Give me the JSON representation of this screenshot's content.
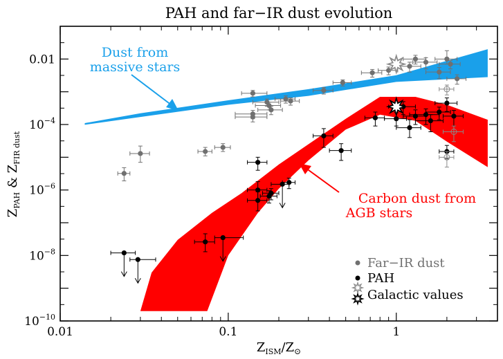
{
  "chart_data": {
    "type": "scatter",
    "title": "PAH and far−IR dust evolution",
    "xlabel": {
      "base": "Z",
      "sub": "ISM",
      "sep": "/Z",
      "sun": "⊙"
    },
    "ylabel": {
      "p1": "Z",
      "s1": "PAH",
      "amp": " & Z",
      "s2": "FIR dust"
    },
    "x_scale": "log",
    "y_scale": "log",
    "xlim": [
      0.01,
      4.0
    ],
    "ylim": [
      1e-10,
      0.1
    ],
    "x_ticks": [
      {
        "value": 0.01,
        "label": "0.01"
      },
      {
        "value": 0.1,
        "label": "0.1"
      },
      {
        "value": 1,
        "label": "1"
      }
    ],
    "y_ticks": [
      {
        "value": 1e-10,
        "base": "10",
        "exp": "−10"
      },
      {
        "value": 1e-08,
        "base": "10",
        "exp": "−8"
      },
      {
        "value": 1e-06,
        "base": "10",
        "exp": "−6"
      },
      {
        "value": 0.0001,
        "base": "10",
        "exp": "−4"
      },
      {
        "value": 0.01,
        "label": "0.01"
      }
    ],
    "bands": [
      {
        "name": "Dust from massive stars",
        "color": "#1aa0ea",
        "label_lines": [
          "Dust from",
          "massive stars"
        ],
        "upper": [
          [
            0.014,
            0.00011
          ],
          [
            0.03,
            0.00022
          ],
          [
            0.1,
            0.00055
          ],
          [
            0.3,
            0.0012
          ],
          [
            1.0,
            0.0032
          ],
          [
            3.5,
            0.02
          ]
        ],
        "lower": [
          [
            3.5,
            0.0028
          ],
          [
            1.0,
            0.002
          ],
          [
            0.3,
            0.00075
          ],
          [
            0.1,
            0.0004
          ],
          [
            0.03,
            0.00017
          ],
          [
            0.014,
            9.8e-05
          ]
        ]
      },
      {
        "name": "Carbon dust from AGB stars",
        "color": "#ff0000",
        "label_lines": [
          "Carbon dust from",
          "AGB stars"
        ],
        "upper": [
          [
            0.035,
            3e-09
          ],
          [
            0.05,
            3e-08
          ],
          [
            0.08,
            2e-07
          ],
          [
            0.12,
            8e-07
          ],
          [
            0.2,
            6e-06
          ],
          [
            0.3,
            2.5e-05
          ],
          [
            0.5,
            0.00015
          ],
          [
            0.8,
            0.0007
          ],
          [
            1.3,
            0.0007
          ],
          [
            2.0,
            0.0004
          ],
          [
            3.5,
            0.00014
          ]
        ],
        "lower": [
          [
            3.5,
            5e-06
          ],
          [
            2.0,
            3e-05
          ],
          [
            1.3,
            0.00013
          ],
          [
            0.8,
            0.0002
          ],
          [
            0.5,
            7e-05
          ],
          [
            0.3,
            8e-06
          ],
          [
            0.2,
            1.1e-06
          ],
          [
            0.15,
            2e-07
          ],
          [
            0.1,
            1e-08
          ],
          [
            0.075,
            2e-10
          ],
          [
            0.03,
            2e-10
          ]
        ]
      }
    ],
    "series": [
      {
        "name": "Far−IR dust",
        "color": "#707070",
        "points": [
          {
            "x": 0.024,
            "y": 3.2e-06,
            "xerr": [
              0.002,
              0.002
            ],
            "yerr": [
              1.3e-06,
              1.6e-06
            ]
          },
          {
            "x": 0.03,
            "y": 1.3e-05,
            "xerr": [
              0.004,
              0.004
            ],
            "yerr": [
              6e-06,
              9e-06
            ]
          },
          {
            "x": 0.073,
            "y": 1.5e-05,
            "xerr": [
              0.007,
              0.007
            ],
            "yerr": [
              4e-06,
              5e-06
            ]
          },
          {
            "x": 0.093,
            "y": 2e-05,
            "xerr": [
              0.01,
              0.01
            ],
            "yerr": [
              5e-06,
              6e-06
            ]
          },
          {
            "x": 0.14,
            "y": 0.0009,
            "xerr": [
              0.02,
              0.03
            ],
            "yerr": [
              0.0002,
              0.0002
            ]
          },
          {
            "x": 0.14,
            "y": 0.00021,
            "xerr": [
              0.03,
              0.03
            ],
            "yerr": [
              6e-05,
              6e-05
            ]
          },
          {
            "x": 0.14,
            "y": 0.00017,
            "xerr": [
              0.03,
              0.03
            ],
            "yerr": [
              5e-05,
              5e-05
            ]
          },
          {
            "x": 0.17,
            "y": 0.00048,
            "xerr": [
              0.03,
              0.03
            ],
            "yerr": [
              0.00012,
              0.00012
            ]
          },
          {
            "x": 0.175,
            "y": 0.00038,
            "xerr": [
              0.03,
              0.03
            ],
            "yerr": [
              0.0001,
              0.0001
            ]
          },
          {
            "x": 0.18,
            "y": 0.00028,
            "xerr": [
              0.03,
              0.03
            ],
            "yerr": [
              8e-05,
              8e-05
            ]
          },
          {
            "x": 0.22,
            "y": 0.0006,
            "xerr": [
              0.03,
              0.03
            ],
            "yerr": [
              0.00015,
              0.00015
            ]
          },
          {
            "x": 0.235,
            "y": 0.00052,
            "xerr": [
              0.03,
              0.03
            ],
            "yerr": [
              0.00013,
              0.00013
            ]
          },
          {
            "x": 0.37,
            "y": 0.0011,
            "xerr": [
              0.05,
              0.05
            ],
            "yerr": [
              0.00025,
              0.00025
            ]
          },
          {
            "x": 0.48,
            "y": 0.0019,
            "xerr": [
              0.06,
              0.06
            ],
            "yerr": [
              0.0004,
              0.0004
            ]
          },
          {
            "x": 0.72,
            "y": 0.0038,
            "xerr": [
              0.1,
              0.1
            ],
            "yerr": [
              0.001,
              0.001
            ]
          },
          {
            "x": 0.9,
            "y": 0.0045,
            "xerr": [
              0.12,
              0.12
            ],
            "yerr": [
              0.0012,
              0.0012
            ]
          },
          {
            "x": 1.2,
            "y": 0.006,
            "xerr": [
              0.2,
              0.2
            ],
            "yerr": [
              0.002,
              0.002
            ]
          },
          {
            "x": 1.3,
            "y": 0.01,
            "xerr": [
              0.2,
              0.2
            ],
            "yerr": [
              0.003,
              0.003
            ]
          },
          {
            "x": 1.5,
            "y": 0.008,
            "xerr": [
              0.25,
              0.25
            ],
            "yerr": [
              0.003,
              0.003
            ]
          },
          {
            "x": 1.8,
            "y": 0.004,
            "xerr": [
              0.3,
              0.3
            ],
            "yerr": [
              0.0015,
              0.0015
            ]
          },
          {
            "x": 2.0,
            "y": 0.01,
            "xerr": [
              0.3,
              0.3
            ],
            "yerr": [
              0.003,
              0.008
            ]
          },
          {
            "x": 2.1,
            "y": 0.007,
            "xerr": [
              0.3,
              0.3
            ],
            "yerr": [
              0.002,
              0.002
            ]
          },
          {
            "x": 2.3,
            "y": 0.0025,
            "xerr": [
              0.3,
              0.3
            ],
            "yerr": [
              0.0008,
              0.0008
            ]
          }
        ]
      },
      {
        "name": "PAH",
        "color": "#000000",
        "points": [
          {
            "x": 0.024,
            "y": 1.2e-08,
            "xerr": [
              0.004,
              0.004
            ],
            "upper_limit": true
          },
          {
            "x": 0.029,
            "y": 7.5e-09,
            "xerr": [
              0.003,
              0.008
            ],
            "upper_limit": true
          },
          {
            "x": 0.073,
            "y": 2.6e-08,
            "xerr": [
              0.01,
              0.01
            ],
            "yerr": [
              1.3e-08,
              2e-08
            ]
          },
          {
            "x": 0.093,
            "y": 3.5e-08,
            "xerr": [
              0.01,
              0.03
            ],
            "upper_limit": true
          },
          {
            "x": 0.15,
            "y": 7e-06,
            "xerr": [
              0.02,
              0.02
            ],
            "yerr": [
              3e-06,
              3e-06
            ]
          },
          {
            "x": 0.15,
            "y": 1e-06,
            "xerr": [
              0.02,
              0.02
            ],
            "yerr": [
              5e-07,
              8e-07
            ]
          },
          {
            "x": 0.15,
            "y": 4.8e-07,
            "xerr": [
              0.02,
              0.02
            ],
            "yerr": [
              2.5e-07,
              4e-07
            ]
          },
          {
            "x": 0.175,
            "y": 6.5e-07,
            "xerr": [
              0.02,
              0.02
            ],
            "yerr": [
              2.5e-07,
              3e-07
            ]
          },
          {
            "x": 0.18,
            "y": 8e-07,
            "xerr": [
              0.02,
              0.02
            ],
            "yerr": [
              3e-07,
              3e-07
            ]
          },
          {
            "x": 0.21,
            "y": 1.5e-06,
            "xerr": [
              0.03,
              0.02
            ],
            "upper_limit": true
          },
          {
            "x": 0.23,
            "y": 1.7e-06,
            "xerr": [
              0.02,
              0.02
            ],
            "yerr": [
              6e-07,
              6e-07
            ]
          },
          {
            "x": 0.37,
            "y": 4.5e-05,
            "xerr": [
              0.05,
              0.05
            ],
            "yerr": [
              2.5e-05,
              3e-05
            ]
          },
          {
            "x": 0.47,
            "y": 1.6e-05,
            "xerr": [
              0.07,
              0.07
            ],
            "yerr": [
              8e-06,
              1e-05
            ]
          },
          {
            "x": 0.75,
            "y": 0.00016,
            "xerr": [
              0.1,
              0.1
            ],
            "yerr": [
              7e-05,
              8e-05
            ]
          },
          {
            "x": 1.0,
            "y": 0.00015,
            "xerr": [
              0.15,
              0.15
            ],
            "yerr": [
              6e-05,
              8e-05
            ]
          },
          {
            "x": 1.1,
            "y": 0.00035,
            "xerr": [
              0.2,
              0.2
            ],
            "yerr": [
              0.00015,
              0.00015
            ]
          },
          {
            "x": 1.2,
            "y": 8e-05,
            "xerr": [
              0.2,
              0.2
            ],
            "yerr": [
              4e-05,
              6e-05
            ]
          },
          {
            "x": 1.3,
            "y": 0.00018,
            "xerr": [
              0.2,
              0.2
            ],
            "yerr": [
              8e-05,
              0.0001
            ]
          },
          {
            "x": 1.5,
            "y": 0.0002,
            "xerr": [
              0.3,
              0.3
            ],
            "yerr": [
              0.0001,
              0.0001
            ]
          },
          {
            "x": 1.6,
            "y": 0.00013,
            "xerr": [
              0.3,
              0.3
            ],
            "yerr": [
              7e-05,
              7e-05
            ]
          },
          {
            "x": 1.8,
            "y": 0.00024,
            "xerr": [
              0.3,
              0.3
            ],
            "yerr": [
              0.0001,
              0.0001
            ]
          },
          {
            "x": 2.0,
            "y": 0.00045,
            "xerr": [
              0.3,
              0.3
            ],
            "yerr": [
              0.0002,
              0.0002
            ]
          },
          {
            "x": 2.0,
            "y": 1.5e-05,
            "xerr": [
              0.2,
              0.2
            ],
            "yerr": [
              6e-06,
              8e-06
            ]
          },
          {
            "x": 2.2,
            "y": 0.00018,
            "xerr": [
              0.3,
              0.3
            ],
            "yerr": [
              9e-05,
              9e-05
            ]
          }
        ]
      },
      {
        "name": "Far−IR dust (open)",
        "color": "#8a8a8a",
        "open": true,
        "points": [
          {
            "x": 2.0,
            "y": 0.0012,
            "xerr": [
              0.2,
              0.2
            ],
            "yerr": [
              0.0004,
              0.0004
            ]
          },
          {
            "x": 2.0,
            "y": 1e-05,
            "xerr": [
              0.2,
              0.2
            ],
            "yerr": [
              5e-06,
              5e-06
            ]
          },
          {
            "x": 2.2,
            "y": 6e-05,
            "xerr": [
              0.3,
              0.3
            ],
            "yerr": [
              3e-05,
              3e-05
            ]
          }
        ]
      }
    ],
    "galactic": [
      {
        "name": "Galactic values (Far−IR dust)",
        "x": 1.0,
        "y": 0.007,
        "color": "#8c8c8c"
      },
      {
        "name": "Galactic values (PAH)",
        "x": 1.0,
        "y": 0.00035,
        "color": "#000000"
      }
    ],
    "legend": {
      "position": "bottom-right",
      "entries": [
        {
          "label": "Far−IR dust",
          "marker": "dot",
          "color": "#707070"
        },
        {
          "label": "PAH",
          "marker": "dot",
          "color": "#000000"
        },
        {
          "label": "Galactic values",
          "marker": "star",
          "color": "#000000"
        }
      ]
    }
  }
}
